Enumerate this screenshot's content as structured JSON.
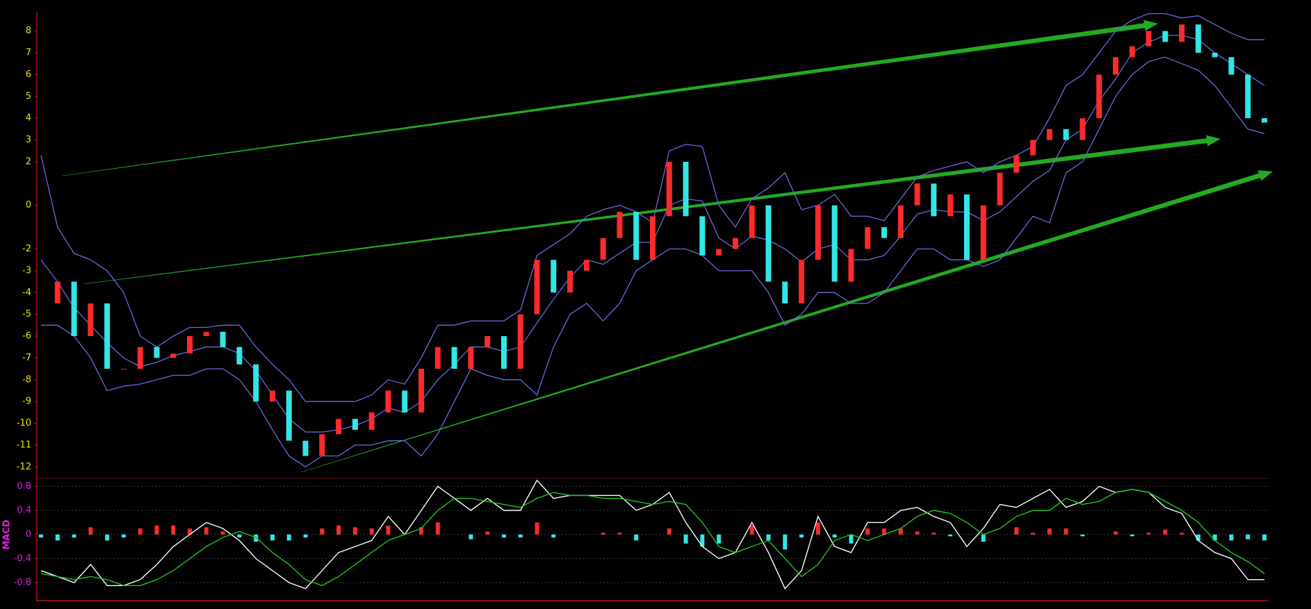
{
  "chart_data": [
    {
      "type": "kline",
      "ylim": [
        -12.5,
        8.85
      ],
      "yticks": [
        8,
        7,
        6,
        5,
        4,
        3,
        2,
        0,
        -2,
        -3,
        -4,
        -5,
        -6,
        -7,
        -8,
        -9,
        -10,
        -11,
        -12
      ],
      "tick_color": "#e6e600",
      "color_up": "#ff2a2a",
      "color_down": "#33e6e6",
      "values": [
        -4.5,
        -3.5,
        -6,
        -4.5,
        -7.5,
        -7.5,
        -6.5,
        -7,
        -6.8,
        -6,
        -5.8,
        -6.5,
        -7.3,
        -9,
        -8.5,
        -10.8,
        -11.5,
        -10.5,
        -9.8,
        -10.3,
        -9.5,
        -8.5,
        -9.5,
        -7.5,
        -6.5,
        -7.5,
        -6.5,
        -6,
        -7.5,
        -5,
        -2.5,
        -4,
        -3,
        -2.5,
        -1.5,
        -0.3,
        -2.5,
        -0.5,
        2,
        -0.5,
        -2.3,
        -2,
        -1.5,
        0,
        -3.5,
        -4.5,
        -2.5,
        0,
        -3.5,
        -2,
        -1,
        -1.5,
        0,
        1,
        -0.5,
        0.5,
        -2.5,
        0,
        1.5,
        2.3,
        3,
        3.5,
        3,
        4,
        6,
        6.8,
        7.3,
        8,
        7.5,
        8.3,
        7,
        6.8,
        6,
        4,
        3.8
      ],
      "series": [
        {
          "color": "#6a6ae0",
          "values": [
            2.3,
            -1,
            -2.2,
            -2.5,
            -3,
            -4,
            -6,
            -6.5,
            -6,
            -5.6,
            -5.6,
            -5.5,
            -5.5,
            -6.5,
            -7.3,
            -8,
            -9,
            -9,
            -9,
            -9,
            -8.7,
            -8,
            -8.2,
            -7,
            -5.5,
            -5.5,
            -5.3,
            -5.3,
            -5.3,
            -4.8,
            -2.3,
            -1.8,
            -1.3,
            -0.5,
            -0.2,
            0,
            -0.3,
            -0.8,
            2.5,
            2.8,
            2.7,
            0,
            -1,
            0.3,
            0.8,
            1.5,
            -0.2,
            0,
            0.5,
            -0.5,
            -0.5,
            -0.7,
            0.3,
            1.3,
            1.6,
            1.8,
            2,
            1.5,
            2,
            2.3,
            2.7,
            4,
            5.5,
            6,
            7,
            8,
            8.5,
            8.8,
            8.8,
            8.6,
            8.7,
            8.3,
            7.9,
            7.6,
            7.6
          ]
        },
        {
          "color": "#6a6ae0",
          "values": [
            -2.5,
            -3.5,
            -4.7,
            -5.5,
            -6.3,
            -7,
            -7.4,
            -7.2,
            -6.9,
            -6.7,
            -6.5,
            -6.5,
            -6.8,
            -7.6,
            -8.7,
            -9.8,
            -10.4,
            -10.4,
            -10.3,
            -10.1,
            -9.8,
            -9.3,
            -9.5,
            -9,
            -8,
            -7.3,
            -6.5,
            -6.5,
            -6.7,
            -6.5,
            -5.4,
            -4.3,
            -3.3,
            -2.5,
            -2.7,
            -2.2,
            -1.7,
            -1.7,
            0,
            0.3,
            0.2,
            -1.5,
            -2,
            -1.4,
            -1.6,
            -2,
            -2.6,
            -2,
            -1.8,
            -2.5,
            -2.5,
            -2.3,
            -1.4,
            -0.4,
            -0.2,
            -0.3,
            -0.3,
            -0.7,
            -0.3,
            0.4,
            1.1,
            1.6,
            3,
            3.5,
            4.8,
            5.8,
            7,
            7.5,
            7.8,
            7.8,
            7.6,
            7,
            6.5,
            6,
            5.5
          ]
        },
        {
          "color": "#6a6ae0",
          "values": [
            -5.5,
            -5.5,
            -6,
            -7,
            -8.5,
            -8.3,
            -8.2,
            -8,
            -7.8,
            -7.8,
            -7.5,
            -7.5,
            -8,
            -9,
            -10.3,
            -11.5,
            -12,
            -11.5,
            -11.5,
            -11,
            -11,
            -10.8,
            -10.8,
            -11.5,
            -10.5,
            -9,
            -7.5,
            -7.8,
            -8,
            -8,
            -8.7,
            -6.5,
            -5,
            -4.5,
            -5.3,
            -4.5,
            -3,
            -2.5,
            -2,
            -2,
            -2.3,
            -3,
            -3,
            -3,
            -4,
            -5.5,
            -5,
            -4,
            -4,
            -4.5,
            -4.5,
            -4,
            -3,
            -2,
            -2,
            -2.5,
            -2.5,
            -2.8,
            -2.5,
            -1.5,
            -0.5,
            -0.8,
            1.5,
            2,
            3.5,
            5,
            6,
            6.6,
            6.8,
            6.5,
            6.2,
            5.5,
            4.5,
            3.5,
            3.3
          ]
        }
      ]
    },
    {
      "type": "macd",
      "title": "MACD",
      "ylim": [
        -1.1,
        0.92
      ],
      "yticks": [
        0.8,
        0.4,
        0,
        -0.4,
        -0.8
      ],
      "tick_color": "#e020e0",
      "grid": true,
      "color_up": "#ff2a2a",
      "color_down": "#33e6e6",
      "histogram": [
        -0.05,
        -0.1,
        -0.05,
        0.12,
        -0.1,
        -0.05,
        0.1,
        0.15,
        0.15,
        0.1,
        0.12,
        0.05,
        -0.05,
        -0.12,
        -0.1,
        -0.1,
        -0.05,
        0.1,
        0.15,
        0.12,
        0.1,
        0.15,
        0,
        0.12,
        0.2,
        0,
        -0.08,
        0.05,
        -0.05,
        -0.05,
        0.2,
        -0.05,
        0,
        0,
        0.03,
        0.03,
        -0.1,
        0,
        0.1,
        -0.15,
        -0.2,
        -0.15,
        0,
        0.15,
        -0.1,
        -0.25,
        -0.05,
        0.2,
        -0.05,
        -0.15,
        0.1,
        0.1,
        0.1,
        0.05,
        0.03,
        -0.03,
        0,
        -0.12,
        0,
        0.12,
        0.03,
        0.1,
        0.1,
        -0.03,
        0,
        0.05,
        -0.03,
        0.03,
        0.08,
        0.03,
        -0.1,
        -0.1,
        -0.1,
        -0.08,
        -0.1
      ],
      "series": [
        {
          "color": "#ffffff",
          "values": [
            -0.6,
            -0.7,
            -0.8,
            -0.5,
            -0.85,
            -0.85,
            -0.75,
            -0.5,
            -0.2,
            0,
            0.2,
            0.1,
            -0.1,
            -0.4,
            -0.6,
            -0.8,
            -0.9,
            -0.6,
            -0.3,
            -0.2,
            -0.1,
            0.3,
            0,
            0.4,
            0.8,
            0.6,
            0.4,
            0.6,
            0.4,
            0.4,
            0.9,
            0.6,
            0.65,
            0.65,
            0.65,
            0.65,
            0.4,
            0.5,
            0.7,
            0.2,
            -0.2,
            -0.4,
            -0.3,
            0.2,
            -0.3,
            -0.9,
            -0.6,
            0.3,
            -0.2,
            -0.3,
            0.2,
            0.2,
            0.4,
            0.45,
            0.3,
            0.2,
            -0.2,
            0.1,
            0.5,
            0.45,
            0.6,
            0.75,
            0.45,
            0.55,
            0.8,
            0.7,
            0.75,
            0.7,
            0.45,
            0.35,
            -0.1,
            -0.3,
            -0.4,
            -0.75,
            -0.75
          ]
        },
        {
          "color": "#22c422",
          "values": [
            -0.65,
            -0.7,
            -0.75,
            -0.7,
            -0.75,
            -0.85,
            -0.85,
            -0.75,
            -0.6,
            -0.4,
            -0.2,
            -0.05,
            0.05,
            -0.05,
            -0.3,
            -0.5,
            -0.75,
            -0.85,
            -0.7,
            -0.5,
            -0.3,
            -0.1,
            0,
            0.1,
            0.4,
            0.6,
            0.6,
            0.55,
            0.5,
            0.45,
            0.6,
            0.7,
            0.65,
            0.65,
            0.6,
            0.6,
            0.55,
            0.5,
            0.55,
            0.5,
            0.2,
            -0.2,
            -0.3,
            -0.2,
            -0.1,
            -0.4,
            -0.7,
            -0.5,
            -0.1,
            0,
            -0.1,
            0,
            0.1,
            0.3,
            0.4,
            0.35,
            0.2,
            0,
            0.1,
            0.3,
            0.4,
            0.4,
            0.6,
            0.5,
            0.55,
            0.7,
            0.75,
            0.7,
            0.55,
            0.4,
            0.2,
            -0.1,
            -0.3,
            -0.45,
            -0.65
          ]
        }
      ]
    }
  ]
}
